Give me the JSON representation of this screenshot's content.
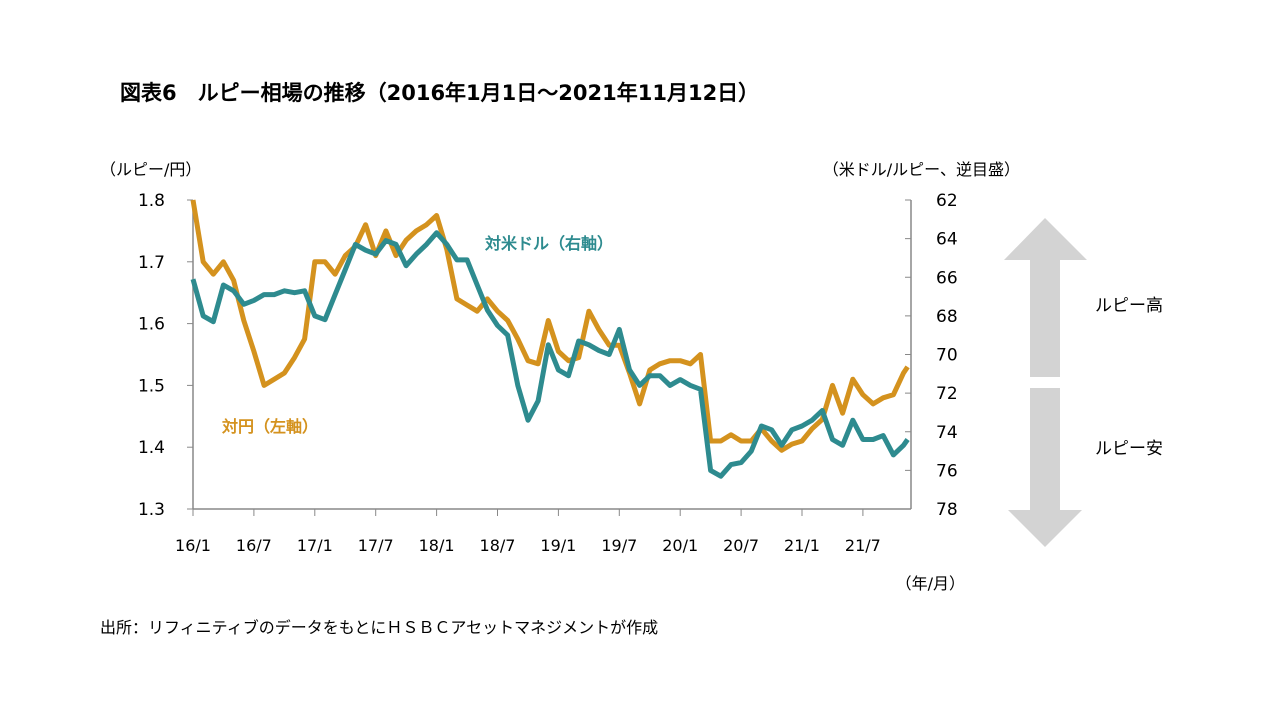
{
  "chart_data": {
    "type": "line",
    "title": "図表6　ルピー相場の推移（2016年1月1日～2021年11月12日）",
    "left_axis": {
      "label": "（ルピー/円）",
      "ylim": [
        1.3,
        1.8
      ],
      "ticks": [
        "1.8",
        "1.7",
        "1.6",
        "1.5",
        "1.4",
        "1.3"
      ]
    },
    "right_axis": {
      "label": "（米ドル/ルピー、逆目盛）",
      "ylim": [
        62,
        78
      ],
      "inverted": true,
      "ticks": [
        "62",
        "64",
        "66",
        "68",
        "70",
        "72",
        "74",
        "76",
        "78"
      ]
    },
    "x_axis": {
      "label": "（年/月）",
      "ticks": [
        "16/1",
        "16/7",
        "17/1",
        "17/7",
        "18/1",
        "18/7",
        "19/1",
        "19/7",
        "20/1",
        "20/7",
        "21/1",
        "21/7"
      ],
      "start": "2016-01",
      "end": "2021-11-12"
    },
    "grid": false,
    "colors": {
      "jpy": "#D4921E",
      "usd": "#2E8B8F",
      "arrow": "#D3D3D3"
    },
    "series": [
      {
        "name": "対円（左軸）",
        "axis": "left",
        "values": [
          1.8,
          1.7,
          1.68,
          1.7,
          1.67,
          1.605,
          1.555,
          1.5,
          1.51,
          1.52,
          1.545,
          1.575,
          1.7,
          1.7,
          1.68,
          1.71,
          1.725,
          1.76,
          1.71,
          1.75,
          1.71,
          1.735,
          1.75,
          1.76,
          1.775,
          1.72,
          1.64,
          1.63,
          1.62,
          1.64,
          1.62,
          1.605,
          1.575,
          1.54,
          1.535,
          1.605,
          1.555,
          1.54,
          1.545,
          1.62,
          1.59,
          1.565,
          1.565,
          1.52,
          1.47,
          1.525,
          1.535,
          1.54,
          1.54,
          1.535,
          1.55,
          1.41,
          1.41,
          1.42,
          1.41,
          1.41,
          1.43,
          1.41,
          1.395,
          1.405,
          1.41,
          1.43,
          1.445,
          1.5,
          1.455,
          1.51,
          1.485,
          1.47,
          1.48,
          1.485,
          1.52,
          1.53
        ]
      },
      {
        "name": "対米ドル（右軸）",
        "axis": "right",
        "values": [
          66.1,
          68.0,
          68.3,
          66.4,
          66.7,
          67.4,
          67.2,
          66.9,
          66.9,
          66.7,
          66.8,
          66.7,
          68.0,
          68.2,
          66.9,
          65.6,
          64.3,
          64.6,
          64.8,
          64.1,
          64.3,
          65.4,
          64.8,
          64.3,
          63.7,
          64.3,
          65.1,
          65.1,
          66.4,
          67.7,
          68.5,
          69.0,
          71.6,
          73.4,
          72.4,
          69.5,
          70.8,
          71.1,
          69.3,
          69.5,
          69.8,
          70.0,
          68.7,
          70.8,
          71.6,
          71.1,
          71.1,
          71.6,
          71.3,
          71.6,
          71.8,
          76.0,
          76.3,
          75.7,
          75.6,
          75.0,
          73.7,
          73.9,
          74.7,
          73.9,
          73.7,
          73.4,
          72.9,
          74.4,
          74.7,
          73.4,
          74.4,
          74.4,
          74.2,
          75.2,
          74.7,
          74.4
        ]
      }
    ],
    "annotations": {
      "up": "ルピー高",
      "down": "ルピー安"
    }
  },
  "source": "出所：リフィニティブのデータをもとにＨＳＢＣアセットマネジメントが作成"
}
